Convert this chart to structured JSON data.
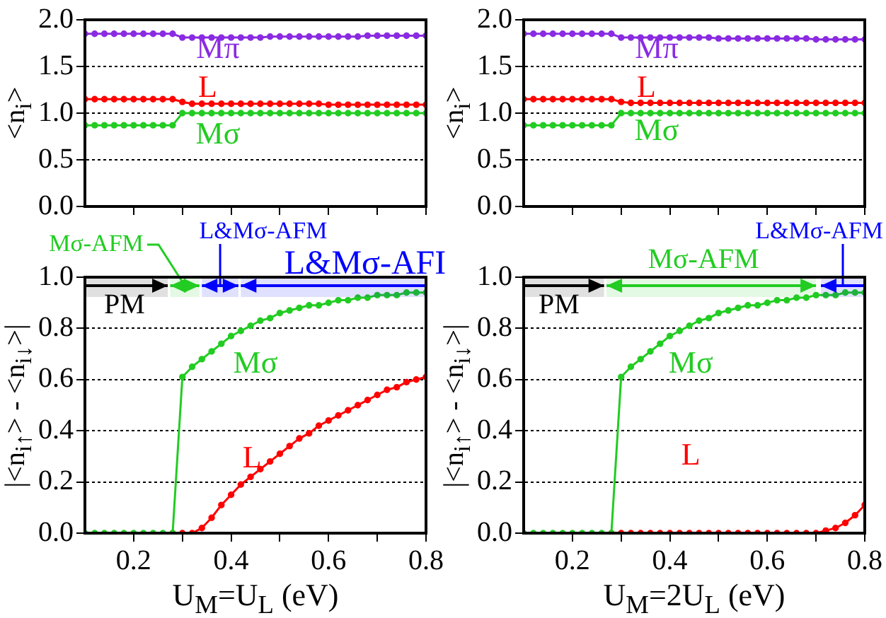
{
  "chart_data": [
    {
      "type": "line",
      "ylabel": "<n$_{i}$>",
      "xlim": [
        0.1,
        0.8
      ],
      "xticks": [
        0.2,
        0.3,
        0.4,
        0.5,
        0.6,
        0.7,
        0.8
      ],
      "ylim": [
        0,
        2
      ],
      "yticks": [
        {
          "value": 0,
          "label": "0.0"
        },
        0.5,
        {
          "value": 1,
          "label": "1.0"
        },
        1.5,
        {
          "value": 2,
          "label": "2.0"
        }
      ],
      "grid": "y",
      "tick_labels": "y",
      "marker": "circle",
      "x": [
        0.1,
        0.12,
        0.14,
        0.16,
        0.18,
        0.2,
        0.22,
        0.24,
        0.26,
        0.28,
        0.3,
        0.32,
        0.34,
        0.36,
        0.38,
        0.4,
        0.42,
        0.44,
        0.46,
        0.48,
        0.5,
        0.52,
        0.54,
        0.56,
        0.58,
        0.6,
        0.62,
        0.64,
        0.66,
        0.68,
        0.7,
        0.72,
        0.74,
        0.76,
        0.78,
        0.8
      ],
      "series": [
        {
          "name": "Mπ",
          "color": "#8a2be2",
          "values": [
            1.85,
            1.85,
            1.85,
            1.85,
            1.85,
            1.85,
            1.85,
            1.85,
            1.85,
            1.85,
            1.81,
            1.81,
            1.81,
            1.81,
            1.81,
            1.81,
            1.81,
            1.81,
            1.81,
            1.82,
            1.82,
            1.82,
            1.82,
            1.82,
            1.82,
            1.82,
            1.82,
            1.82,
            1.82,
            1.83,
            1.83,
            1.83,
            1.83,
            1.83,
            1.83,
            1.83
          ]
        },
        {
          "name": "L",
          "color": "#ff0000",
          "values": [
            1.15,
            1.15,
            1.15,
            1.15,
            1.15,
            1.15,
            1.15,
            1.15,
            1.15,
            1.15,
            1.12,
            1.1,
            1.1,
            1.1,
            1.1,
            1.1,
            1.1,
            1.1,
            1.1,
            1.1,
            1.1,
            1.1,
            1.1,
            1.1,
            1.1,
            1.09,
            1.09,
            1.09,
            1.09,
            1.09,
            1.09,
            1.09,
            1.09,
            1.09,
            1.09,
            1.09
          ]
        },
        {
          "name": "Mσ",
          "color": "#22cc22",
          "values": [
            0.87,
            0.87,
            0.87,
            0.87,
            0.87,
            0.87,
            0.87,
            0.87,
            0.87,
            0.87,
            1.0,
            1.0,
            1.0,
            1.0,
            1.0,
            1.0,
            1.0,
            1.0,
            1.0,
            1.0,
            1.0,
            1.0,
            1.0,
            1.0,
            1.0,
            1.0,
            1.0,
            1.0,
            1.0,
            1.0,
            1.0,
            1.0,
            1.0,
            1.0,
            1.0,
            1.0
          ]
        }
      ]
    },
    {
      "type": "line",
      "ylabel": "<n$_{i}$>",
      "xlim": [
        0.1,
        0.8
      ],
      "xticks": [
        0.2,
        0.3,
        0.4,
        0.5,
        0.6,
        0.7,
        0.8
      ],
      "ylim": [
        0,
        2
      ],
      "yticks": [
        {
          "value": 0,
          "label": "0.0"
        },
        0.5,
        {
          "value": 1,
          "label": "1.0"
        },
        1.5,
        {
          "value": 2,
          "label": "2.0"
        }
      ],
      "grid": "y",
      "tick_labels": "y",
      "marker": "circle",
      "x": [
        0.1,
        0.12,
        0.14,
        0.16,
        0.18,
        0.2,
        0.22,
        0.24,
        0.26,
        0.28,
        0.3,
        0.32,
        0.34,
        0.36,
        0.38,
        0.4,
        0.42,
        0.44,
        0.46,
        0.48,
        0.5,
        0.52,
        0.54,
        0.56,
        0.58,
        0.6,
        0.62,
        0.64,
        0.66,
        0.68,
        0.7,
        0.72,
        0.74,
        0.76,
        0.78,
        0.8
      ],
      "series": [
        {
          "name": "Mπ",
          "color": "#8a2be2",
          "values": [
            1.85,
            1.85,
            1.85,
            1.85,
            1.85,
            1.85,
            1.85,
            1.85,
            1.85,
            1.85,
            1.81,
            1.81,
            1.81,
            1.81,
            1.81,
            1.81,
            1.81,
            1.81,
            1.81,
            1.81,
            1.8,
            1.8,
            1.8,
            1.8,
            1.8,
            1.8,
            1.8,
            1.8,
            1.8,
            1.8,
            1.79,
            1.79,
            1.79,
            1.79,
            1.79,
            1.79
          ]
        },
        {
          "name": "L",
          "color": "#ff0000",
          "values": [
            1.15,
            1.15,
            1.15,
            1.15,
            1.15,
            1.15,
            1.15,
            1.15,
            1.15,
            1.15,
            1.12,
            1.11,
            1.11,
            1.11,
            1.11,
            1.11,
            1.11,
            1.11,
            1.11,
            1.11,
            1.11,
            1.11,
            1.11,
            1.11,
            1.11,
            1.11,
            1.11,
            1.11,
            1.11,
            1.11,
            1.11,
            1.11,
            1.11,
            1.11,
            1.11,
            1.11
          ]
        },
        {
          "name": "Mσ",
          "color": "#22cc22",
          "values": [
            0.87,
            0.87,
            0.87,
            0.87,
            0.87,
            0.87,
            0.87,
            0.87,
            0.87,
            0.87,
            1.0,
            1.0,
            1.0,
            1.0,
            1.0,
            1.0,
            1.0,
            1.0,
            1.0,
            1.0,
            1.0,
            1.0,
            1.0,
            1.0,
            1.0,
            1.0,
            1.0,
            1.0,
            1.0,
            1.0,
            1.0,
            1.0,
            1.0,
            1.0,
            1.0,
            1.0
          ]
        }
      ]
    },
    {
      "type": "line",
      "xlabel": "U$_{M}$=U$_{L}$ (eV)",
      "ylabel": "|<n$_{i↑}$> - <n$_{i↓}$>|",
      "xlim": [
        0.1,
        0.8
      ],
      "xticks": [
        0.2,
        {
          "value": 0.3,
          "label": null
        },
        0.4,
        {
          "value": 0.5,
          "label": null
        },
        0.6,
        {
          "value": 0.7,
          "label": null
        },
        0.8
      ],
      "ylim": [
        0,
        1
      ],
      "yticks": [
        {
          "value": 0,
          "label": "0.0"
        },
        0.2,
        0.4,
        0.6,
        0.8,
        {
          "value": 1,
          "label": "1.0"
        }
      ],
      "grid": "y",
      "marker": "circle",
      "x": [
        0.1,
        0.12,
        0.14,
        0.16,
        0.18,
        0.2,
        0.22,
        0.24,
        0.26,
        0.28,
        0.3,
        0.32,
        0.34,
        0.36,
        0.38,
        0.4,
        0.42,
        0.44,
        0.46,
        0.48,
        0.5,
        0.52,
        0.54,
        0.56,
        0.58,
        0.6,
        0.62,
        0.64,
        0.66,
        0.68,
        0.7,
        0.72,
        0.74,
        0.76,
        0.78,
        0.8
      ],
      "series": [
        {
          "name": "Mσ",
          "color": "#22cc22",
          "values": [
            0,
            0,
            0,
            0,
            0,
            0,
            0,
            0,
            0,
            0,
            0.61,
            0.65,
            0.68,
            0.71,
            0.74,
            0.77,
            0.79,
            0.81,
            0.83,
            0.84,
            0.86,
            0.87,
            0.88,
            0.89,
            0.89,
            0.9,
            0.91,
            0.91,
            0.92,
            0.92,
            0.93,
            0.93,
            0.93,
            0.94,
            0.94,
            0.94
          ]
        },
        {
          "name": "L",
          "color": "#ff0000",
          "values": [
            null,
            null,
            null,
            null,
            null,
            null,
            null,
            null,
            null,
            0,
            0,
            0,
            0.02,
            0.06,
            0.11,
            0.15,
            0.19,
            0.22,
            0.25,
            0.28,
            0.31,
            0.34,
            0.37,
            0.39,
            0.42,
            0.44,
            0.46,
            0.48,
            0.5,
            0.52,
            0.54,
            0.56,
            0.57,
            0.59,
            0.6,
            0.61
          ]
        }
      ],
      "bands": [
        {
          "axis": "x",
          "from": 0.1,
          "to": 0.27,
          "label": "PM",
          "color": "#000000"
        },
        {
          "axis": "x",
          "from": 0.275,
          "to": 0.335,
          "label": "Mσ-AFM",
          "color": "#22cc22"
        },
        {
          "axis": "x",
          "from": 0.34,
          "to": 0.415,
          "label": "L&Mσ-AFM",
          "color": "#0000ff"
        },
        {
          "axis": "x",
          "from": 0.42,
          "to": 0.8,
          "label": "L&Mσ-AFI",
          "color": "#0000ff"
        }
      ]
    },
    {
      "type": "line",
      "xlabel": "U$_{M}$=2U$_{L}$ (eV)",
      "ylabel": "|<n$_{i↑}$> - <n$_{i↓}$>|",
      "xlim": [
        0.1,
        0.8
      ],
      "xticks": [
        0.2,
        {
          "value": 0.3,
          "label": null
        },
        0.4,
        {
          "value": 0.5,
          "label": null
        },
        0.6,
        {
          "value": 0.7,
          "label": null
        },
        0.8
      ],
      "ylim": [
        0,
        1
      ],
      "yticks": [
        {
          "value": 0,
          "label": "0.0"
        },
        0.2,
        0.4,
        0.6,
        0.8,
        {
          "value": 1,
          "label": "1.0"
        }
      ],
      "grid": "y",
      "marker": "circle",
      "x": [
        0.1,
        0.12,
        0.14,
        0.16,
        0.18,
        0.2,
        0.22,
        0.24,
        0.26,
        0.28,
        0.3,
        0.32,
        0.34,
        0.36,
        0.38,
        0.4,
        0.42,
        0.44,
        0.46,
        0.48,
        0.5,
        0.52,
        0.54,
        0.56,
        0.58,
        0.6,
        0.62,
        0.64,
        0.66,
        0.68,
        0.7,
        0.72,
        0.74,
        0.76,
        0.78,
        0.8
      ],
      "series": [
        {
          "name": "Mσ",
          "color": "#22cc22",
          "values": [
            0,
            0,
            0,
            0,
            0,
            0,
            0,
            0,
            0,
            0,
            0.61,
            0.65,
            0.68,
            0.71,
            0.74,
            0.77,
            0.79,
            0.81,
            0.83,
            0.84,
            0.86,
            0.87,
            0.88,
            0.89,
            0.89,
            0.9,
            0.91,
            0.91,
            0.92,
            0.92,
            0.93,
            0.93,
            0.93,
            0.94,
            0.94,
            0.94
          ]
        },
        {
          "name": "L",
          "color": "#ff0000",
          "values": [
            null,
            null,
            null,
            null,
            null,
            null,
            null,
            null,
            null,
            0,
            0,
            0,
            0,
            0,
            0,
            0,
            0,
            0,
            0,
            0,
            0,
            0,
            0,
            0,
            0,
            0,
            0,
            0,
            0,
            0,
            0,
            0.01,
            0.02,
            0.04,
            0.07,
            0.11
          ]
        }
      ],
      "bands": [
        {
          "axis": "x",
          "from": 0.1,
          "to": 0.265,
          "label": "PM",
          "color": "#000000"
        },
        {
          "axis": "x",
          "from": 0.27,
          "to": 0.7,
          "label": "Mσ-AFM",
          "color": "#22cc22"
        },
        {
          "axis": "x",
          "from": 0.71,
          "to": 0.8,
          "label": "L&Mσ-AFM",
          "color": "#0000ff"
        }
      ]
    }
  ]
}
